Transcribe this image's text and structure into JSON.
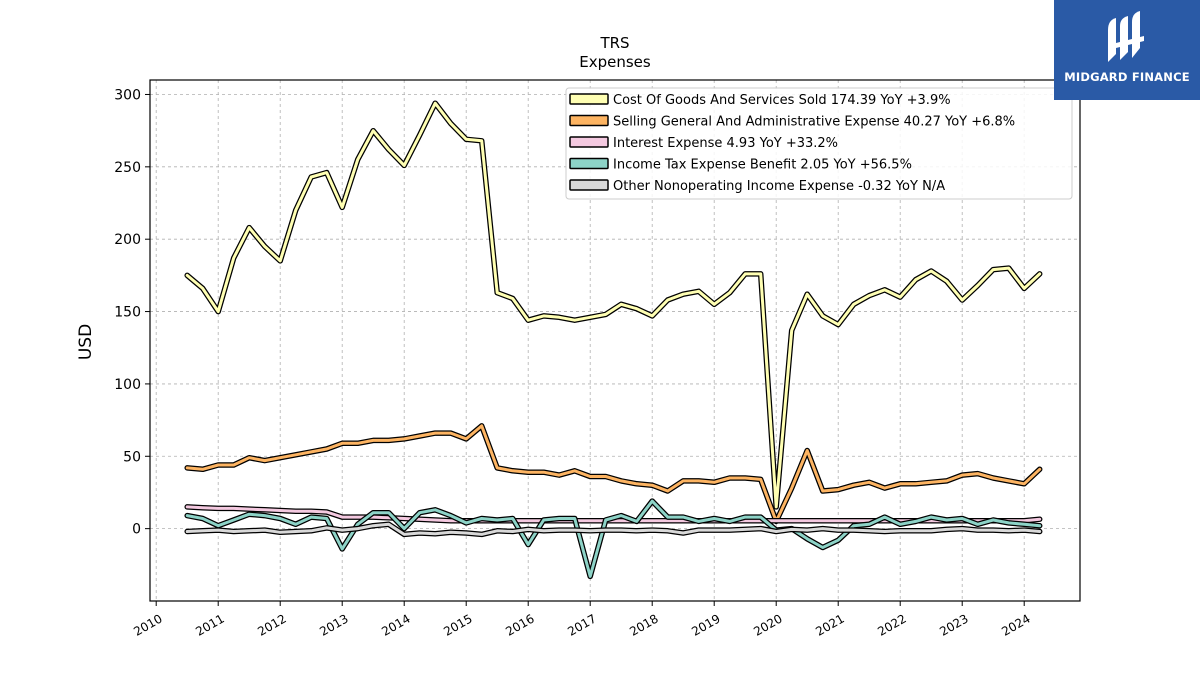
{
  "chart_data": {
    "type": "line",
    "title": "TRS",
    "subtitle": "Expenses",
    "xlabel": "",
    "ylabel": "USD",
    "xlim": [
      2009.9,
      2024.9
    ],
    "ylim": [
      -50,
      310
    ],
    "yticks": [
      0,
      50,
      100,
      150,
      200,
      250,
      300
    ],
    "xtick_labels": [
      "2010",
      "2011",
      "2012",
      "2013",
      "2014",
      "2015",
      "2016",
      "2017",
      "2018",
      "2019",
      "2020",
      "2021",
      "2022",
      "2023",
      "2024"
    ],
    "grid": true,
    "legend_position": "top-right",
    "x": [
      2010.5,
      2010.75,
      2011.0,
      2011.25,
      2011.5,
      2011.75,
      2012.0,
      2012.25,
      2012.5,
      2012.75,
      2013.0,
      2013.25,
      2013.5,
      2013.75,
      2014.0,
      2014.25,
      2014.5,
      2014.75,
      2015.0,
      2015.25,
      2015.5,
      2015.75,
      2016.0,
      2016.25,
      2016.5,
      2016.75,
      2017.0,
      2017.25,
      2017.5,
      2017.75,
      2018.0,
      2018.25,
      2018.5,
      2018.75,
      2019.0,
      2019.25,
      2019.5,
      2019.75,
      2020.0,
      2020.25,
      2020.5,
      2020.75,
      2021.0,
      2021.25,
      2021.5,
      2021.75,
      2022.0,
      2022.25,
      2022.5,
      2022.75,
      2023.0,
      2023.25,
      2023.5,
      2023.75,
      2024.0,
      2024.25
    ],
    "series": [
      {
        "name": "Cost Of Goods And Services Sold",
        "legend_value": "174.39 YoY +3.9%",
        "color": "#ffffb3",
        "values": [
          175,
          166,
          150,
          187,
          208,
          195,
          185,
          220,
          243,
          246,
          222,
          255,
          275,
          262,
          251,
          272,
          294,
          280,
          269,
          268,
          163,
          159,
          144,
          147,
          146,
          144,
          146,
          148,
          155,
          152,
          147,
          158,
          162,
          164,
          155,
          163,
          176,
          176,
          15,
          137,
          162,
          147,
          141,
          155,
          161,
          165,
          160,
          172,
          178,
          171,
          158,
          168,
          179,
          180,
          166,
          176
        ]
      },
      {
        "name": "Selling General And Administrative Expense",
        "legend_value": "40.27 YoY +6.8%",
        "color": "#fdb462",
        "values": [
          42,
          41,
          44,
          44,
          49,
          47,
          49,
          51,
          53,
          55,
          59,
          59,
          61,
          61,
          62,
          64,
          66,
          66,
          62,
          71,
          42,
          40,
          39,
          39,
          37,
          40,
          36,
          36,
          33,
          31,
          30,
          26,
          33,
          33,
          32,
          35,
          35,
          34,
          5,
          28,
          54,
          26,
          27,
          30,
          32,
          28,
          31,
          31,
          32,
          33,
          37,
          38,
          35,
          33,
          31,
          41
        ]
      },
      {
        "name": "Interest Expense",
        "legend_value": "4.93 YoY +33.2%",
        "color": "#f4c9e0",
        "values": [
          15,
          14.5,
          14,
          14,
          13.5,
          13,
          12.5,
          12,
          12,
          11.5,
          8,
          8,
          8,
          7.5,
          7,
          6.5,
          6,
          5.5,
          5.5,
          5.5,
          5.5,
          5.5,
          5.5,
          5.5,
          5.5,
          5.5,
          5.5,
          5.5,
          5.5,
          5.5,
          5.5,
          5.5,
          5.5,
          5.5,
          5.5,
          5.5,
          5.5,
          5.5,
          5.5,
          5.5,
          5.5,
          5.5,
          5.5,
          5.5,
          5.5,
          5.5,
          5.5,
          5.5,
          5.5,
          5.5,
          5.5,
          5.5,
          5.5,
          5.5,
          5.5,
          6.5
        ]
      },
      {
        "name": "Income Tax Expense Benefit",
        "legend_value": "2.05 YoY +56.5%",
        "color": "#8dd3c7",
        "values": [
          9,
          7,
          2,
          6,
          10,
          9,
          7,
          3,
          8,
          7,
          -14,
          3,
          11,
          11,
          0,
          11,
          13,
          9,
          4,
          7,
          6,
          7,
          -11,
          6,
          7,
          7,
          -33,
          6,
          9,
          5,
          19,
          8,
          8,
          5,
          7,
          5,
          8,
          8,
          -1,
          0,
          -7,
          -13,
          -8,
          2,
          3,
          8,
          3,
          5,
          8,
          6,
          7,
          3,
          6,
          4,
          3,
          2
        ]
      },
      {
        "name": "Other Nonoperating Income Expense",
        "legend_value": "-0.32 YoY N/A",
        "color": "#d9d9d9",
        "values": [
          -2,
          -1.5,
          -1,
          -2,
          -1.5,
          -1,
          -2.5,
          -2,
          -1.5,
          0.5,
          -1,
          0,
          2,
          3,
          -4,
          -3,
          -3.5,
          -2.5,
          -3,
          -4,
          -1.5,
          -2,
          -0.5,
          -1.5,
          -1,
          -1,
          -1.5,
          -1,
          -1,
          -1.5,
          -1,
          -1.5,
          -3,
          -1,
          -1,
          -1,
          -0.5,
          0,
          -2,
          -0.5,
          -1,
          0,
          -1,
          -1,
          -1.5,
          -2,
          -1.5,
          -1.5,
          -1.5,
          -0.5,
          0,
          -1,
          -1,
          -1.5,
          -1,
          -2
        ]
      }
    ]
  },
  "logo": {
    "text": "MIDGARD FINANCE"
  }
}
